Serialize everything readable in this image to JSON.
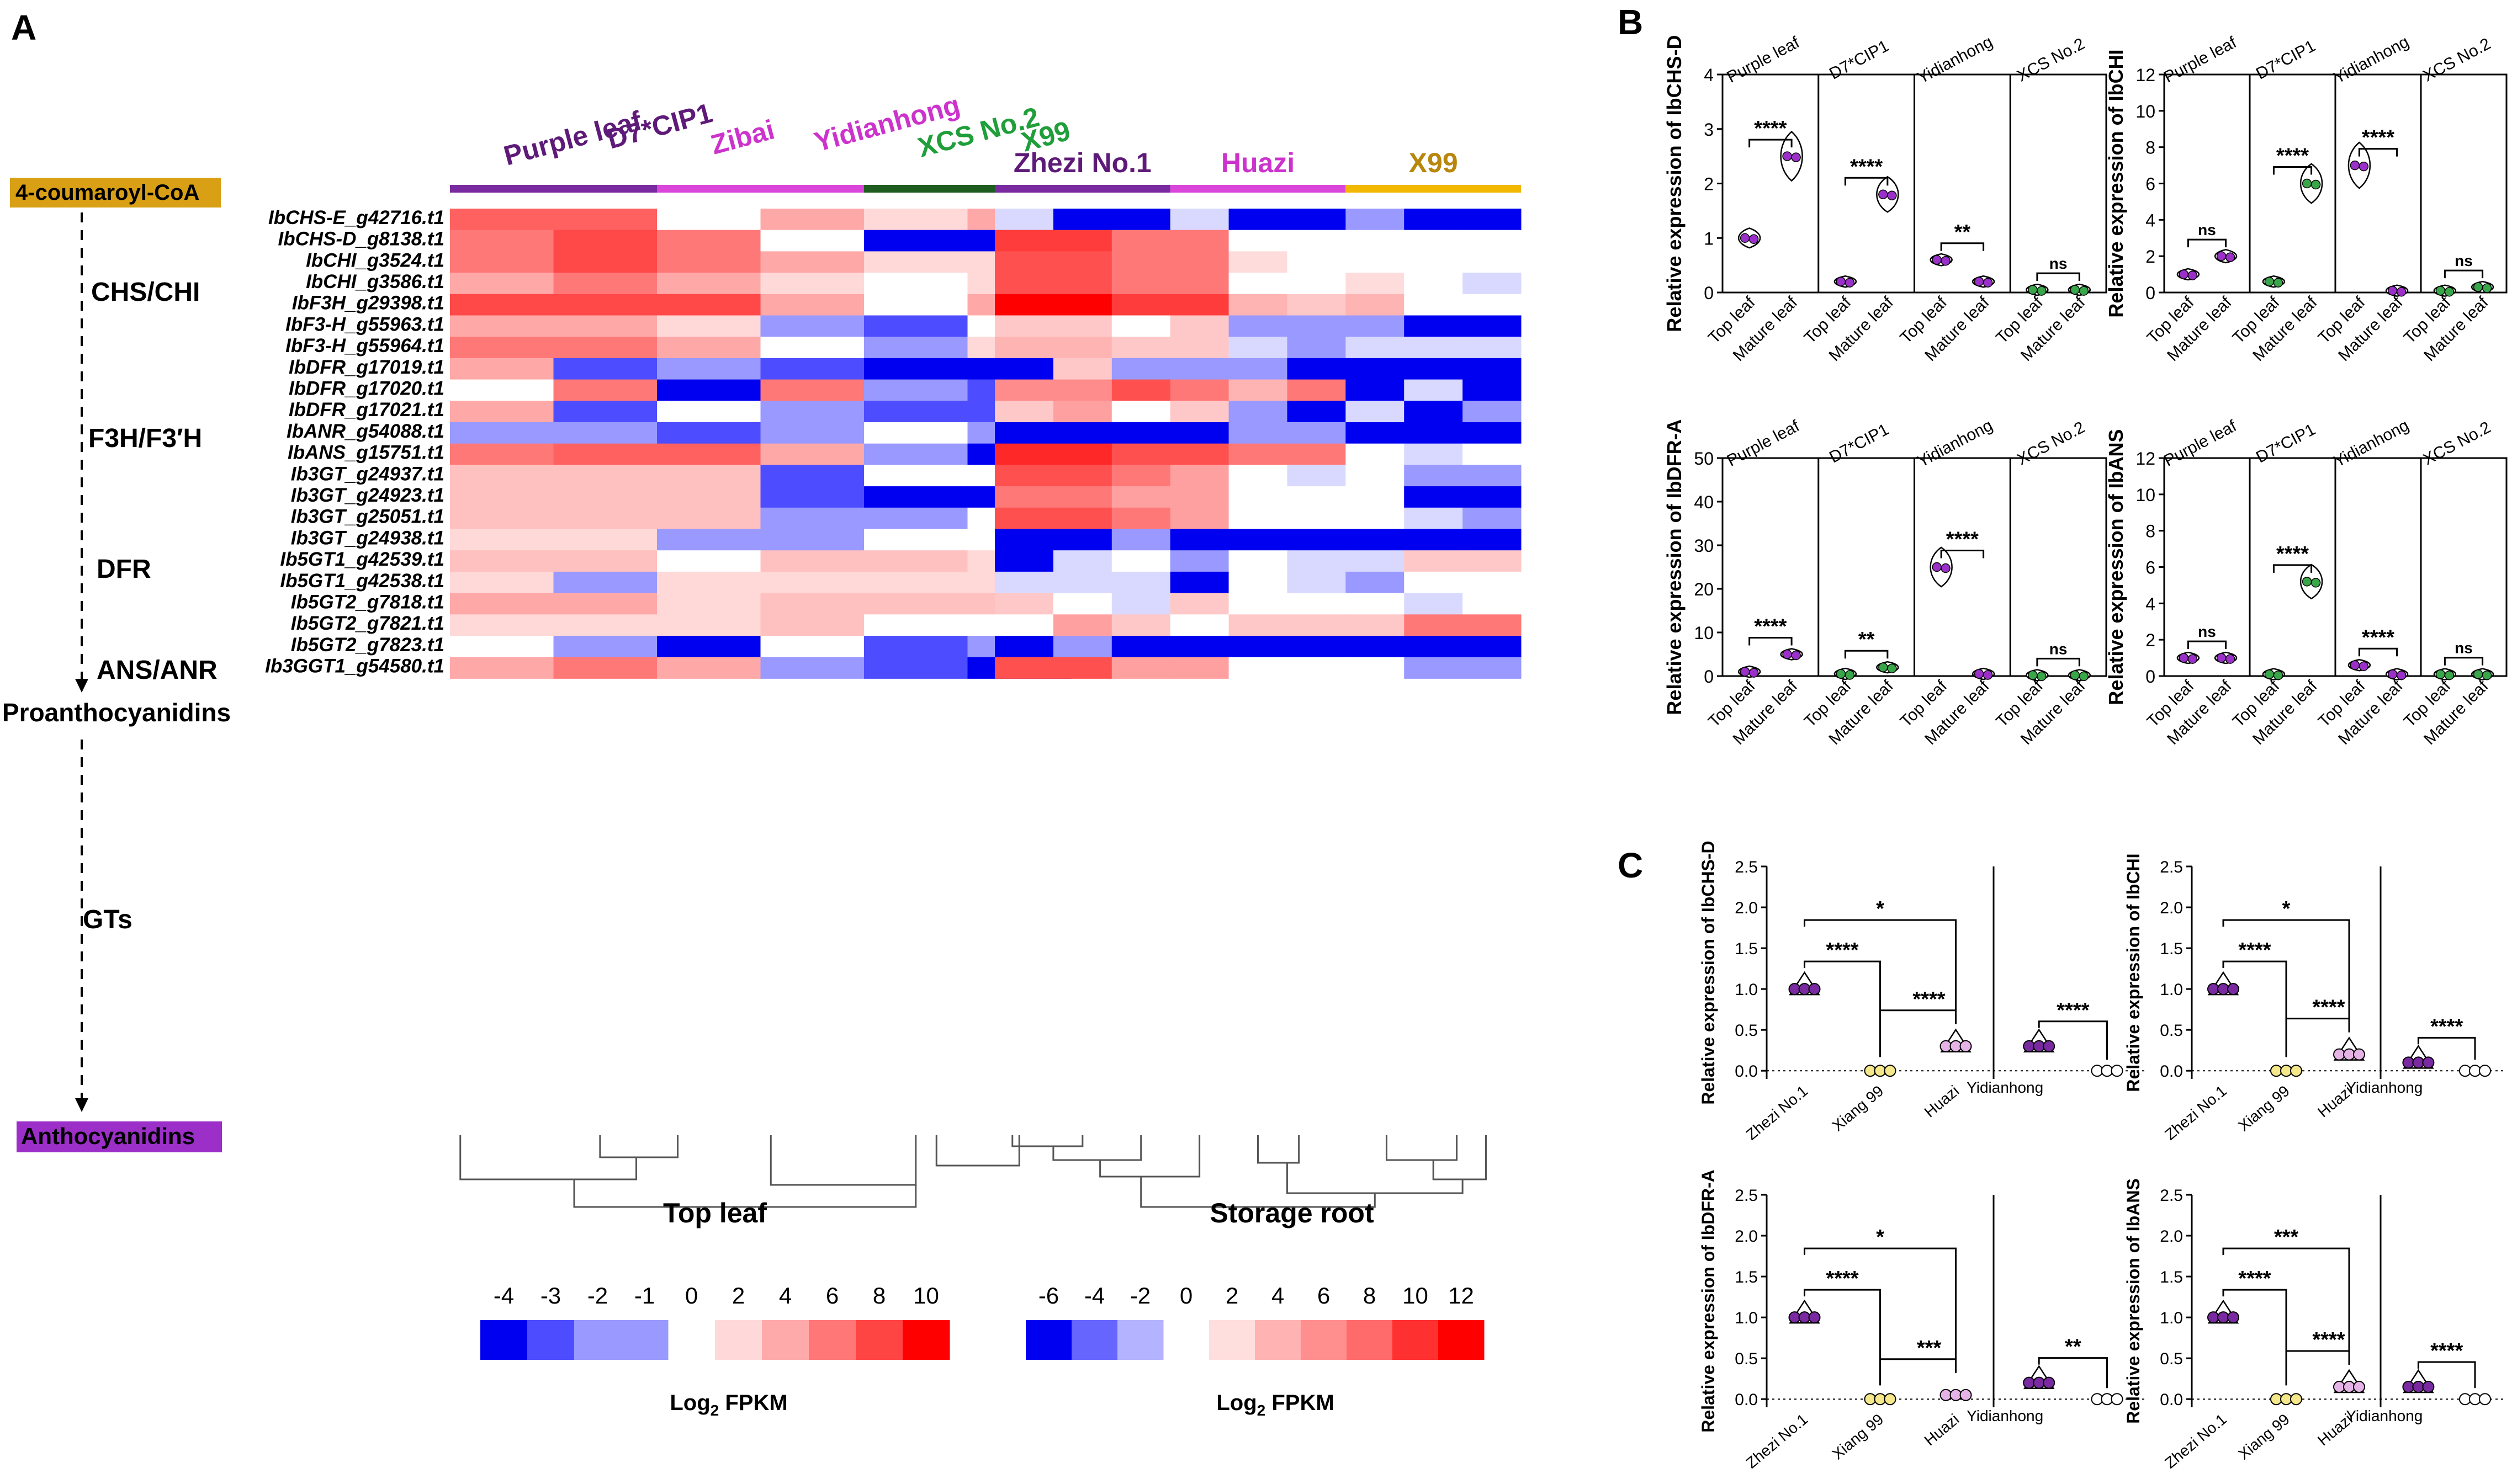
{
  "panel_labels": {
    "a": "A",
    "b": "B",
    "c": "C"
  },
  "pathway": {
    "start": "4-coumaroyl-CoA",
    "steps": [
      "CHS/CHI",
      "F3H/F3′H",
      "DFR",
      "ANS/ANR",
      "GTs"
    ],
    "mid_product": "Proanthocyanidins",
    "end": "Anthocyanidins",
    "start_color": "#d9a015",
    "end_color": "#9b2fc8"
  },
  "heatmap": {
    "genes": [
      "IbCHS-E_g42716.t1",
      "IbCHS-D_g8138.t1",
      "IbCHI_g3524.t1",
      "IbCHI_g3586.t1",
      "IbF3H_g29398.t1",
      "IbF3-H_g55963.t1",
      "IbF3-H_g55964.t1",
      "IbDFR_g17019.t1",
      "IbDFR_g17020.t1",
      "IbDFR_g17021.t1",
      "IbANR_g54088.t1",
      "IbANS_g15751.t1",
      "Ib3GT_g24937.t1",
      "Ib3GT_g24923.t1",
      "Ib3GT_g25051.t1",
      "Ib3GT_g24938.t1",
      "Ib5GT1_g42539.t1",
      "Ib5GT1_g42538.t1",
      "Ib5GT2_g7818.t1",
      "Ib5GT2_g7821.t1",
      "Ib5GT2_g7823.t1",
      "Ib3GGT1_g54580.t1"
    ],
    "top_leaf": {
      "title": "Top leaf",
      "groups": [
        {
          "name": "Purple leaf",
          "color": "#5e1a78",
          "cols": 1
        },
        {
          "name": "D7*CIP1",
          "color": "#5e1a78",
          "cols": 1
        },
        {
          "name": "Zibai",
          "color": "#cc33cc",
          "cols": 1
        },
        {
          "name": "Yidianhong",
          "color": "#cc33cc",
          "cols": 1
        },
        {
          "name": "XCS No.2",
          "color": "#1f9e3a",
          "cols": 1
        },
        {
          "name": "X99",
          "color": "#1f9e3a",
          "cols": 1
        }
      ],
      "bars": [
        {
          "color": "#7a2aa0",
          "span": 2
        },
        {
          "color": "#d946d9",
          "span": 2
        },
        {
          "color": "#1f5c1f",
          "span": 2
        }
      ],
      "values": [
        [
          6,
          6,
          0,
          3,
          1,
          3
        ],
        [
          5,
          7,
          5,
          0,
          -4,
          -4
        ],
        [
          5,
          7,
          5,
          3,
          1,
          1
        ],
        [
          3,
          5,
          3,
          1,
          0,
          1
        ],
        [
          7,
          7,
          7,
          3,
          0,
          3
        ],
        [
          3,
          3,
          1,
          -2,
          -3,
          0
        ],
        [
          5,
          5,
          3,
          0,
          -2,
          1
        ],
        [
          3,
          -3,
          -2,
          -3,
          -4,
          -4
        ],
        [
          0,
          5,
          -4,
          5,
          -2,
          -3
        ],
        [
          3,
          -3,
          0,
          -2,
          -3,
          -3
        ],
        [
          -2,
          -2,
          -3,
          -2,
          0,
          -2
        ],
        [
          5,
          6,
          6,
          3,
          -2,
          -4
        ],
        [
          2,
          2,
          2,
          -3,
          0,
          0
        ],
        [
          2,
          2,
          2,
          -3,
          -4,
          -4
        ],
        [
          2,
          2,
          2,
          -2,
          -2,
          0
        ],
        [
          1,
          1,
          -2,
          -2,
          0,
          0
        ],
        [
          2,
          2,
          0,
          2,
          2,
          1
        ],
        [
          1,
          -2,
          1,
          1,
          1,
          1
        ],
        [
          3,
          3,
          1,
          2,
          2,
          2
        ],
        [
          1,
          1,
          1,
          2,
          0,
          0
        ],
        [
          0,
          -2,
          -4,
          0,
          -3,
          -2
        ],
        [
          3,
          5,
          3,
          -2,
          -3,
          -4
        ]
      ],
      "dendrogram_desc": "hierarchical clustering"
    },
    "storage_root": {
      "title": "Storage root",
      "groups": [
        {
          "name": "Zhezi No.1",
          "color": "#5e1a78"
        },
        {
          "name": "Huazi",
          "color": "#cc33cc"
        },
        {
          "name": "X99",
          "color": "#b8860b"
        }
      ],
      "bars": [
        {
          "color": "#7a2aa0",
          "span": 3
        },
        {
          "color": "#d946d9",
          "span": 3
        },
        {
          "color": "#f2b800",
          "span": 3
        }
      ],
      "values": [
        [
          -2,
          -6,
          -6,
          -2,
          -6,
          -6,
          -4,
          -6,
          -6
        ],
        [
          9,
          9,
          6,
          6,
          0,
          0,
          0,
          0,
          0
        ],
        [
          8,
          8,
          6,
          6,
          1,
          0,
          0,
          0,
          0
        ],
        [
          8,
          8,
          6,
          6,
          0,
          0,
          1,
          0,
          -2
        ],
        [
          12,
          12,
          9,
          9,
          3,
          2,
          3,
          0,
          0
        ],
        [
          2,
          2,
          0,
          2,
          -4,
          -4,
          -4,
          -6,
          -6
        ],
        [
          3,
          3,
          2,
          2,
          -2,
          -4,
          -2,
          -2,
          -2
        ],
        [
          -6,
          2,
          -4,
          -4,
          -4,
          -6,
          -6,
          -6,
          -6
        ],
        [
          5,
          5,
          8,
          6,
          3,
          6,
          -6,
          -2,
          -6
        ],
        [
          2,
          4,
          0,
          2,
          -4,
          -6,
          -2,
          -6,
          -4
        ],
        [
          -6,
          -6,
          -6,
          -6,
          -4,
          -4,
          -6,
          -6,
          -6
        ],
        [
          10,
          10,
          8,
          8,
          6,
          6,
          0,
          -2,
          0
        ],
        [
          8,
          8,
          6,
          4,
          0,
          -2,
          0,
          -4,
          -4
        ],
        [
          6,
          6,
          4,
          4,
          0,
          0,
          0,
          -6,
          -6
        ],
        [
          8,
          8,
          6,
          4,
          0,
          0,
          0,
          -2,
          -4
        ],
        [
          -6,
          -6,
          -4,
          -6,
          -6,
          -6,
          -6,
          -6,
          -6
        ],
        [
          -6,
          -2,
          0,
          -4,
          0,
          -2,
          -2,
          2,
          2
        ],
        [
          -2,
          -2,
          -2,
          -6,
          0,
          -2,
          -4,
          0,
          0
        ],
        [
          2,
          0,
          -2,
          2,
          0,
          0,
          0,
          -2,
          0
        ],
        [
          0,
          4,
          2,
          0,
          2,
          2,
          2,
          6,
          6
        ],
        [
          -6,
          -4,
          -6,
          -6,
          -6,
          -6,
          -6,
          -6,
          -6
        ],
        [
          8,
          8,
          4,
          4,
          0,
          0,
          0,
          -4,
          -4
        ]
      ]
    },
    "legend1": {
      "ticks": [
        "-4",
        "-3",
        "-2",
        "-1",
        "0",
        "2",
        "4",
        "6",
        "8",
        "10"
      ],
      "label": "Log",
      "label_sub": "2",
      "label_end": " FPKM"
    },
    "legend2": {
      "ticks": [
        "-6",
        "-4",
        "-2",
        "0",
        "2",
        "4",
        "6",
        "8",
        "10",
        "12"
      ],
      "label": "Log",
      "label_sub": "2",
      "label_end": " FPKM"
    }
  },
  "chart_data": [
    {
      "type": "violin",
      "panel": "B",
      "gene": "IbCHS-D",
      "ylabel": "Relative expression of IbCHS-D",
      "ylim": [
        0,
        4
      ],
      "yticks": [
        "0",
        "1",
        "2",
        "3",
        "4"
      ],
      "groups": [
        {
          "name": "Purple leaf",
          "color": "#9b30c8",
          "top": 1.0,
          "mature": 2.5,
          "sig": "****"
        },
        {
          "name": "D7*CIP1",
          "color": "#9b30c8",
          "top": 0.2,
          "mature": 1.8,
          "sig": "****"
        },
        {
          "name": "Yidianhong",
          "color": "#9b30c8",
          "top": 0.6,
          "mature": 0.2,
          "sig": "**"
        },
        {
          "name": "XCS No.2",
          "color": "#3aa64a",
          "top": 0.05,
          "mature": 0.05,
          "sig": "ns"
        }
      ],
      "xlabels": [
        "Top leaf",
        "Mature leaf"
      ]
    },
    {
      "type": "violin",
      "panel": "B",
      "gene": "IbCHI",
      "ylabel": "Relative expression of IbCHI",
      "ylim": [
        0,
        12
      ],
      "yticks": [
        "0",
        "2",
        "4",
        "6",
        "8",
        "10",
        "12"
      ],
      "groups": [
        {
          "name": "Purple leaf",
          "color": "#9b30c8",
          "top": 1.0,
          "mature": 2.0,
          "sig": "ns"
        },
        {
          "name": "D7*CIP1",
          "color": "#3aa64a",
          "top": 0.6,
          "mature": 6.0,
          "sig": "****"
        },
        {
          "name": "Yidianhong",
          "color": "#9b30c8",
          "top": 7.0,
          "mature": 0.1,
          "sig": "****"
        },
        {
          "name": "XCS No.2",
          "color": "#3aa64a",
          "top": 0.1,
          "mature": 0.3,
          "sig": "ns"
        }
      ],
      "xlabels": [
        "Top leaf",
        "Mature leaf"
      ]
    },
    {
      "type": "violin",
      "panel": "B",
      "gene": "IbDFR-A",
      "ylabel": "Relative expression of IbDFR-A",
      "ylim": [
        0,
        50
      ],
      "yticks": [
        "0",
        "10",
        "20",
        "30",
        "40",
        "50"
      ],
      "groups": [
        {
          "name": "Purple leaf",
          "color": "#9b30c8",
          "top": 1.0,
          "mature": 5.0,
          "sig": "****"
        },
        {
          "name": "D7*CIP1",
          "color": "#3aa64a",
          "top": 0.5,
          "mature": 2.0,
          "sig": "**"
        },
        {
          "name": "Yidianhong",
          "color": "#9b30c8",
          "top": 25.0,
          "mature": 0.5,
          "sig": "****"
        },
        {
          "name": "XCS No.2",
          "color": "#3aa64a",
          "top": 0.2,
          "mature": 0.2,
          "sig": "ns"
        }
      ],
      "xlabels": [
        "Top leaf",
        "Mature leaf"
      ]
    },
    {
      "type": "violin",
      "panel": "B",
      "gene": "IbANS",
      "ylabel": "Relative expression of IbANS",
      "ylim": [
        0,
        12
      ],
      "yticks": [
        "0",
        "2",
        "4",
        "6",
        "8",
        "10",
        "12"
      ],
      "groups": [
        {
          "name": "Purple leaf",
          "color": "#9b30c8",
          "top": 1.0,
          "mature": 1.0,
          "sig": "ns"
        },
        {
          "name": "D7*CIP1",
          "color": "#3aa64a",
          "top": 0.1,
          "mature": 5.2,
          "sig": "****"
        },
        {
          "name": "Yidianhong",
          "color": "#9b30c8",
          "top": 0.6,
          "mature": 0.1,
          "sig": "****"
        },
        {
          "name": "XCS No.2",
          "color": "#3aa64a",
          "top": 0.1,
          "mature": 0.1,
          "sig": "ns"
        }
      ],
      "xlabels": [
        "Top leaf",
        "Mature leaf"
      ]
    },
    {
      "type": "violin",
      "panel": "C",
      "gene": "IbCHS-D",
      "ylabel": "Relative expression of IbCHS-D",
      "ylim": [
        -0.1,
        2.5
      ],
      "yticks": [
        "0.0",
        "0.5",
        "1.0",
        "1.5",
        "2.0",
        "2.5"
      ],
      "cultivars": [
        "Zhezi No.1",
        "Xiang 99",
        "Huazi",
        "Yidianhong"
      ],
      "values": [
        1.0,
        0.0,
        0.3,
        0.3
      ],
      "ref": 0.0,
      "sigs": [
        "****",
        "*",
        "****",
        "****"
      ]
    },
    {
      "type": "violin",
      "panel": "C",
      "gene": "IbCHI",
      "ylabel": "Relative expression of IbCHI",
      "ylim": [
        -0.1,
        2.5
      ],
      "yticks": [
        "0.0",
        "0.5",
        "1.0",
        "1.5",
        "2.0",
        "2.5"
      ],
      "cultivars": [
        "Zhezi No.1",
        "Xiang 99",
        "Huazi",
        "Yidianhong"
      ],
      "values": [
        1.0,
        0.0,
        0.2,
        0.1
      ],
      "ref": 0.0,
      "sigs": [
        "****",
        "*",
        "****",
        "****"
      ]
    },
    {
      "type": "violin",
      "panel": "C",
      "gene": "IbDFR-A",
      "ylabel": "Relative expression of IbDFR-A",
      "ylim": [
        -0.1,
        2.5
      ],
      "yticks": [
        "0.0",
        "0.5",
        "1.0",
        "1.5",
        "2.0",
        "2.5"
      ],
      "cultivars": [
        "Zhezi No.1",
        "Xiang 99",
        "Huazi",
        "Yidianhong"
      ],
      "values": [
        1.0,
        0.0,
        0.05,
        0.2
      ],
      "ref": 0.0,
      "sigs": [
        "****",
        "*",
        "***",
        "**"
      ]
    },
    {
      "type": "violin",
      "panel": "C",
      "gene": "IbANS",
      "ylabel": "Relative expression of IbANS",
      "ylim": [
        -0.1,
        2.5
      ],
      "yticks": [
        "0.0",
        "0.5",
        "1.0",
        "1.5",
        "2.0",
        "2.5"
      ],
      "cultivars": [
        "Zhezi No.1",
        "Xiang 99",
        "Huazi",
        "Yidianhong"
      ],
      "values": [
        1.0,
        0.0,
        0.15,
        0.15
      ],
      "ref": 0.0,
      "sigs": [
        "****",
        "***",
        "****",
        "****"
      ]
    }
  ]
}
